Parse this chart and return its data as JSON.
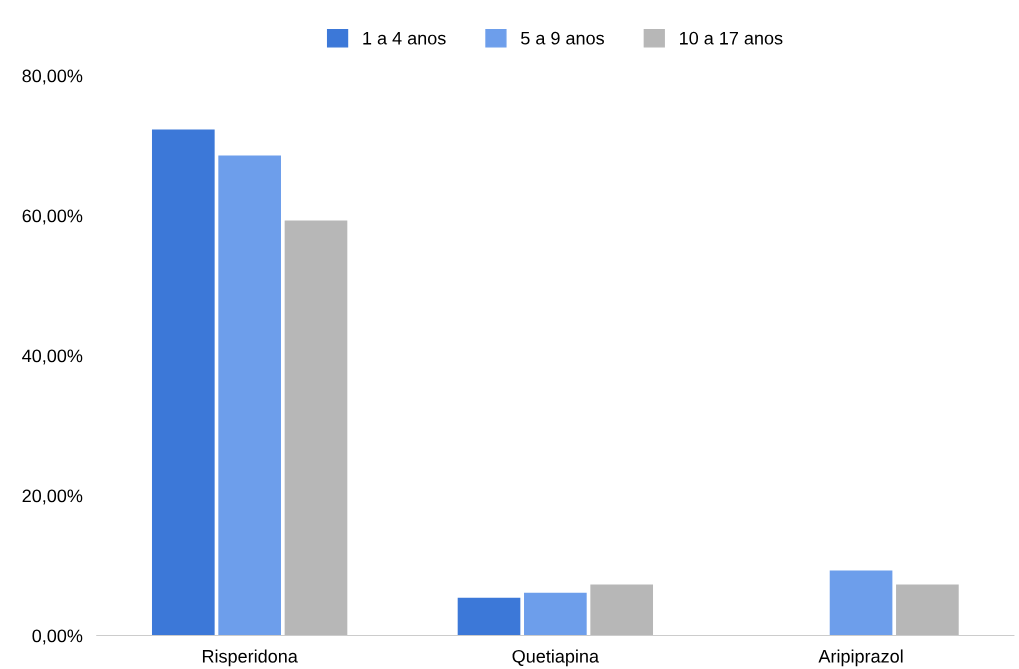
{
  "chart_data": {
    "type": "bar",
    "categories": [
      "Risperidona",
      "Quetiapina",
      "Aripiprazol"
    ],
    "series": [
      {
        "name": "1 a 4 anos",
        "color": "#3c78d8",
        "values": [
          72.3,
          5.4,
          0
        ]
      },
      {
        "name": "5 a 9 anos",
        "color": "#6d9eeb",
        "values": [
          68.6,
          6.1,
          9.3
        ]
      },
      {
        "name": "10 a 17 anos",
        "color": "#b7b7b7",
        "values": [
          59.3,
          7.3,
          7.3
        ]
      }
    ],
    "ylim": [
      0,
      80
    ],
    "yticks": [
      {
        "value": 0,
        "label": "0,00%"
      },
      {
        "value": 20,
        "label": "20,00%"
      },
      {
        "value": 40,
        "label": "40,00%"
      },
      {
        "value": 60,
        "label": "60,00%"
      },
      {
        "value": 80,
        "label": "80,00%"
      }
    ],
    "grid": false,
    "legend": "top"
  }
}
